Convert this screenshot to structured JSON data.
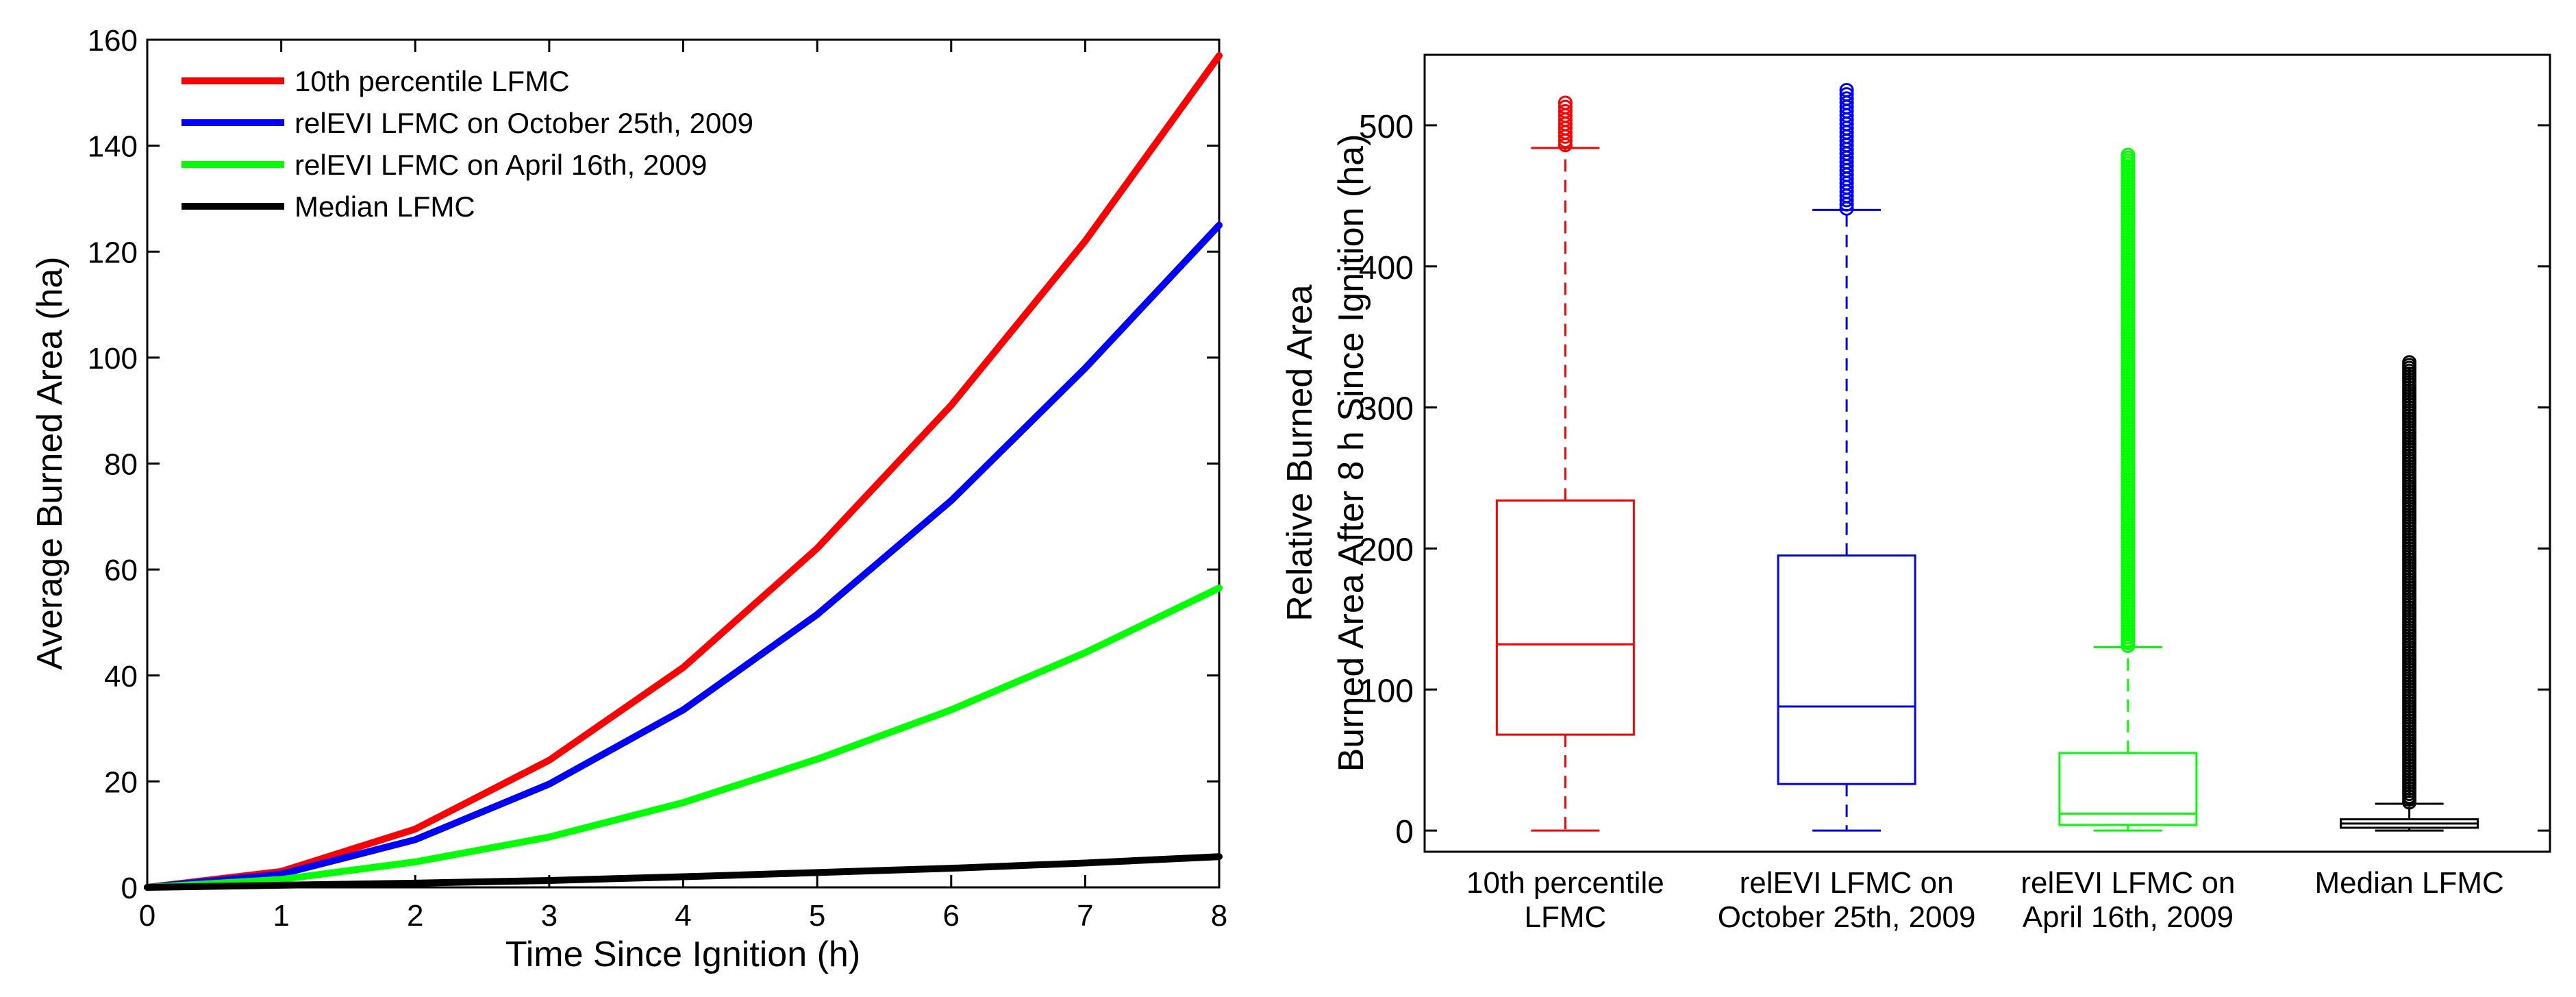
{
  "chart_data": [
    {
      "type": "line",
      "xlabel": "Time Since Ignition (h)",
      "ylabel": "Average Burned Area (ha)",
      "xlim": [
        0,
        8
      ],
      "ylim": [
        0,
        160
      ],
      "xticks": [
        "0",
        "1",
        "2",
        "3",
        "4",
        "5",
        "6",
        "7",
        "8"
      ],
      "yticks": [
        "0",
        "20",
        "40",
        "60",
        "80",
        "100",
        "120",
        "140",
        "160"
      ],
      "legend_position": "top-left",
      "x": [
        0,
        1,
        2,
        3,
        4,
        5,
        6,
        7,
        8
      ],
      "series": [
        {
          "name": "10th percentile LFMC",
          "color": "#ff0000",
          "values": [
            0,
            3,
            11,
            24,
            41.5,
            64,
            91,
            122,
            157
          ]
        },
        {
          "name": "relEVI LFMC on October 25th, 2009",
          "color": "#0000ff",
          "values": [
            0,
            2.5,
            9,
            19.5,
            33.5,
            51.5,
            73,
            98,
            125
          ]
        },
        {
          "name": "relEVI LFMC on April 16th, 2009",
          "color": "#00ff00",
          "values": [
            0,
            1.5,
            4.8,
            9.5,
            16,
            24.2,
            33.5,
            44.3,
            56.5
          ]
        },
        {
          "name": "Median LFMC",
          "color": "#000000",
          "values": [
            0,
            0.4,
            0.8,
            1.3,
            2,
            2.8,
            3.6,
            4.6,
            5.8
          ]
        }
      ]
    },
    {
      "type": "boxplot",
      "ylabel": [
        "Relative Burned Area",
        "Burned Area After 8 h Since Ignition (ha)"
      ],
      "ylim": [
        -15,
        550
      ],
      "yticks": [
        "0",
        "100",
        "200",
        "300",
        "400",
        "500"
      ],
      "categories": [
        [
          "10th percentile",
          "LFMC"
        ],
        [
          "relEVI LFMC on",
          "October 25th, 2009"
        ],
        [
          "relEVI LFMC on",
          "April 16th, 2009"
        ],
        [
          "Median LFMC"
        ]
      ],
      "series": [
        {
          "color": "#ff0000",
          "whisker_low": 0,
          "q1": 68,
          "median": 132,
          "q3": 234,
          "whisker_high": 484,
          "outliers_from": 486,
          "outliers_to": 516
        },
        {
          "color": "#0000ff",
          "whisker_low": 0,
          "q1": 33,
          "median": 88,
          "q3": 195,
          "whisker_high": 440,
          "outliers_from": 441,
          "outliers_to": 527
        },
        {
          "color": "#00ff00",
          "whisker_low": 0,
          "q1": 4,
          "median": 12,
          "q3": 55,
          "whisker_high": 130,
          "outliers_from": 131,
          "outliers_to": 479
        },
        {
          "color": "#000000",
          "whisker_low": 0,
          "q1": 2,
          "median": 5,
          "q3": 8,
          "whisker_high": 19,
          "outliers_from": 20,
          "outliers_to": 333
        }
      ]
    }
  ]
}
